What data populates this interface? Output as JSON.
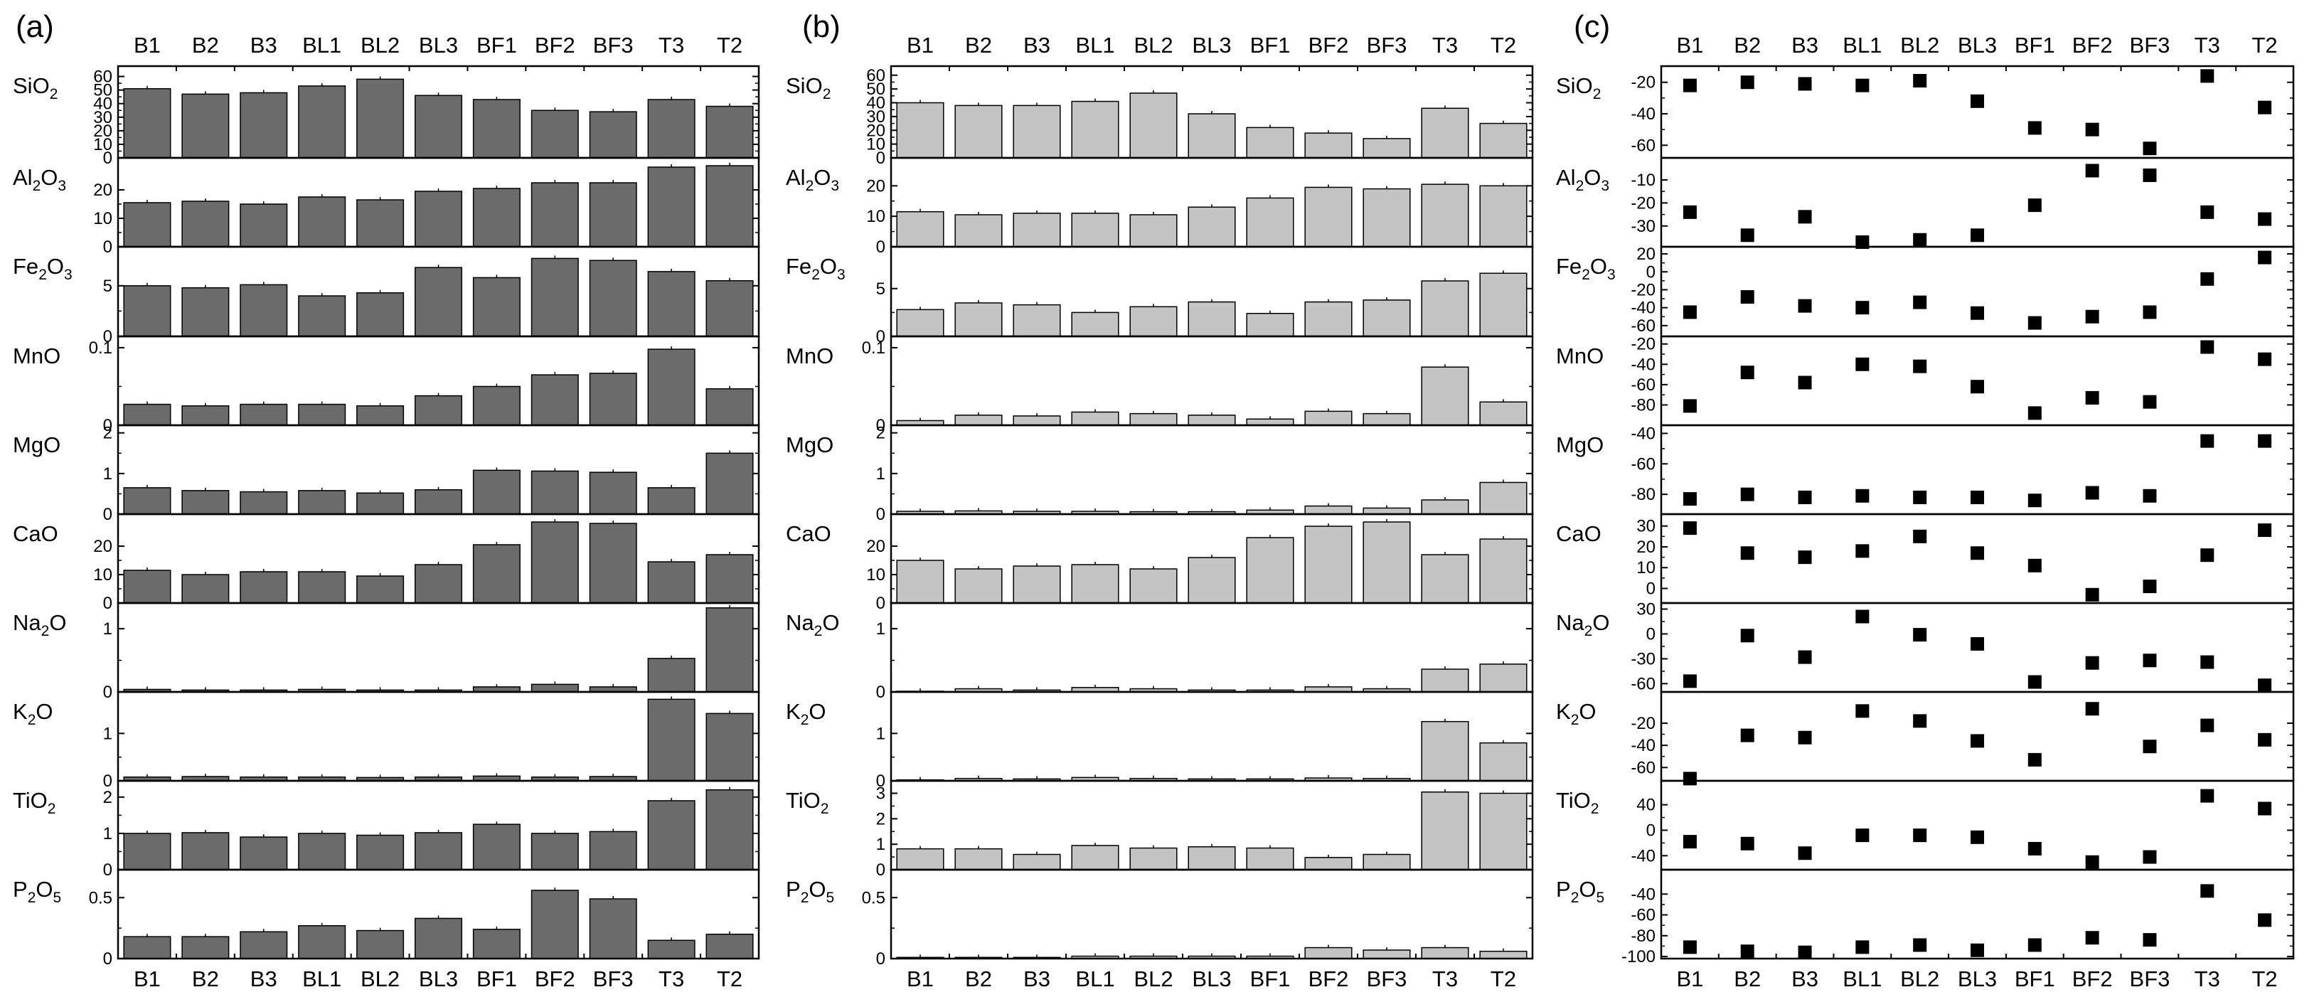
{
  "chart_data": [
    {
      "panel": "(a)",
      "type": "bar",
      "bar_color": "#6b6b6b",
      "categories": [
        "B1",
        "B2",
        "B3",
        "BL1",
        "BL2",
        "BL3",
        "BF1",
        "BF2",
        "BF3",
        "T3",
        "T2"
      ],
      "rows": [
        {
          "oxide": [
            "SiO",
            "2",
            ""
          ],
          "ylim": [
            0,
            65
          ],
          "ticks": [
            0,
            10,
            20,
            30,
            40,
            50,
            60
          ],
          "values": [
            51,
            47,
            48,
            53,
            58,
            46,
            43,
            35,
            34,
            43,
            38
          ]
        },
        {
          "oxide": [
            "Al",
            "2",
            "O",
            "3",
            ""
          ],
          "ylim": [
            0,
            30
          ],
          "ticks": [
            0,
            10,
            20
          ],
          "values": [
            15.5,
            16,
            15,
            17.5,
            16.5,
            19.5,
            20.5,
            22.5,
            22.5,
            28,
            28.5
          ]
        },
        {
          "oxide": [
            "Fe",
            "2",
            "O",
            "3",
            ""
          ],
          "ylim": [
            0,
            8.5
          ],
          "ticks": [
            0,
            5
          ],
          "values": [
            5,
            4.8,
            5.1,
            4,
            4.3,
            6.8,
            5.8,
            7.7,
            7.5,
            6.4,
            5.5
          ]
        },
        {
          "oxide": [
            "MnO"
          ],
          "ylim": [
            0,
            0.11
          ],
          "ticks": [
            0,
            0.1
          ],
          "values": [
            0.027,
            0.025,
            0.027,
            0.027,
            0.025,
            0.038,
            0.05,
            0.065,
            0.067,
            0.098,
            0.047
          ]
        },
        {
          "oxide": [
            "MgO"
          ],
          "ylim": [
            0,
            2.1
          ],
          "ticks": [
            0,
            1,
            2
          ],
          "values": [
            0.65,
            0.58,
            0.55,
            0.58,
            0.52,
            0.6,
            1.08,
            1.06,
            1.03,
            0.65,
            1.5
          ]
        },
        {
          "oxide": [
            "CaO"
          ],
          "ylim": [
            0,
            30
          ],
          "ticks": [
            0,
            10,
            20
          ],
          "values": [
            11.5,
            10,
            11,
            11,
            9.5,
            13.5,
            20.5,
            28.5,
            28,
            14.5,
            17
          ]
        },
        {
          "oxide": [
            "Na",
            "2",
            "O"
          ],
          "ylim": [
            0,
            1.35
          ],
          "ticks": [
            0,
            1
          ],
          "values": [
            0.04,
            0.03,
            0.03,
            0.04,
            0.03,
            0.03,
            0.08,
            0.12,
            0.08,
            0.53,
            1.33
          ]
        },
        {
          "oxide": [
            "K",
            "2",
            "O"
          ],
          "ylim": [
            0,
            1.8
          ],
          "ticks": [
            0,
            1
          ],
          "values": [
            0.08,
            0.09,
            0.08,
            0.08,
            0.07,
            0.08,
            0.1,
            0.08,
            0.09,
            1.72,
            1.42
          ]
        },
        {
          "oxide": [
            "TiO",
            "2",
            ""
          ],
          "ylim": [
            0,
            2.35
          ],
          "ticks": [
            0,
            1,
            2
          ],
          "values": [
            1,
            1.02,
            0.9,
            1,
            0.95,
            1.02,
            1.25,
            1,
            1.05,
            1.9,
            2.2
          ]
        },
        {
          "oxide": [
            "P",
            "2",
            "O",
            "5",
            ""
          ],
          "ylim": [
            0,
            0.7
          ],
          "ticks": [
            0,
            0.5
          ],
          "values": [
            0.18,
            0.18,
            0.22,
            0.27,
            0.23,
            0.33,
            0.24,
            0.56,
            0.49,
            0.15,
            0.2
          ]
        }
      ]
    },
    {
      "panel": "(b)",
      "type": "bar",
      "bar_color": "#c4c4c4",
      "categories": [
        "B1",
        "B2",
        "B3",
        "BL1",
        "BL2",
        "BL3",
        "BF1",
        "BF2",
        "BF3",
        "T3",
        "T2"
      ],
      "rows": [
        {
          "oxide": [
            "SiO",
            "2",
            ""
          ],
          "ylim": [
            0,
            64
          ],
          "ticks": [
            0,
            10,
            20,
            30,
            40,
            50,
            60
          ],
          "values": [
            40,
            38,
            38,
            41,
            47,
            32,
            22,
            18,
            14,
            36,
            25
          ]
        },
        {
          "oxide": [
            "Al",
            "2",
            "O",
            "3",
            ""
          ],
          "ylim": [
            0,
            28
          ],
          "ticks": [
            0,
            10,
            20
          ],
          "values": [
            11.5,
            10.5,
            11,
            11,
            10.5,
            13,
            16,
            19.5,
            19,
            20.5,
            20
          ]
        },
        {
          "oxide": [
            "Fe",
            "2",
            "O",
            "3",
            ""
          ],
          "ylim": [
            0,
            9
          ],
          "ticks": [
            0,
            5
          ],
          "values": [
            2.8,
            3.5,
            3.3,
            2.5,
            3.1,
            3.6,
            2.4,
            3.6,
            3.8,
            5.8,
            6.6
          ]
        },
        {
          "oxide": [
            "MnO"
          ],
          "ylim": [
            0,
            0.11
          ],
          "ticks": [
            0,
            0.1
          ],
          "values": [
            0.006,
            0.013,
            0.012,
            0.017,
            0.015,
            0.013,
            0.008,
            0.018,
            0.015,
            0.075,
            0.03
          ]
        },
        {
          "oxide": [
            "MgO"
          ],
          "ylim": [
            0,
            2.1
          ],
          "ticks": [
            0,
            1,
            2
          ],
          "values": [
            0.07,
            0.08,
            0.07,
            0.07,
            0.06,
            0.06,
            0.1,
            0.2,
            0.15,
            0.35,
            0.78
          ]
        },
        {
          "oxide": [
            "CaO"
          ],
          "ylim": [
            0,
            30
          ],
          "ticks": [
            0,
            10,
            20
          ],
          "values": [
            15,
            12,
            13,
            13.5,
            12,
            16,
            23,
            27,
            28.5,
            17,
            22.5
          ]
        },
        {
          "oxide": [
            "Na",
            "2",
            "O"
          ],
          "ylim": [
            0,
            1.35
          ],
          "ticks": [
            0,
            1
          ],
          "values": [
            0.01,
            0.05,
            0.03,
            0.07,
            0.05,
            0.03,
            0.03,
            0.08,
            0.05,
            0.36,
            0.44
          ]
        },
        {
          "oxide": [
            "K",
            "2",
            "O"
          ],
          "ylim": [
            0,
            1.8
          ],
          "ticks": [
            0,
            1
          ],
          "values": [
            0.02,
            0.05,
            0.04,
            0.07,
            0.05,
            0.04,
            0.04,
            0.06,
            0.05,
            1.25,
            0.8
          ]
        },
        {
          "oxide": [
            "TiO",
            "2",
            ""
          ],
          "ylim": [
            0,
            3.35
          ],
          "ticks": [
            0,
            1,
            2,
            3
          ],
          "values": [
            0.82,
            0.82,
            0.6,
            0.95,
            0.85,
            0.9,
            0.85,
            0.48,
            0.6,
            3.05,
            3
          ]
        },
        {
          "oxide": [
            "P",
            "2",
            "O",
            "5",
            ""
          ],
          "ylim": [
            0,
            0.7
          ],
          "ticks": [
            0,
            0.5
          ],
          "values": [
            0.01,
            0.01,
            0.01,
            0.02,
            0.02,
            0.02,
            0.02,
            0.09,
            0.07,
            0.09,
            0.06
          ]
        }
      ]
    },
    {
      "panel": "(c)",
      "type": "scatter",
      "marker_color": "#000000",
      "categories": [
        "B1",
        "B2",
        "B3",
        "BL1",
        "BL2",
        "BL3",
        "BF1",
        "BF2",
        "BF3",
        "T3",
        "T2"
      ],
      "rows": [
        {
          "oxide": [
            "SiO",
            "2",
            ""
          ],
          "ylim": [
            -68,
            -12
          ],
          "ticks": [
            -20,
            -40,
            -60
          ],
          "values": [
            -22,
            -20,
            -21,
            -22,
            -19,
            -32,
            -49,
            -50,
            -62,
            -16,
            -36
          ]
        },
        {
          "oxide": [
            "Al",
            "2",
            "O",
            "3",
            ""
          ],
          "ylim": [
            -39,
            -2
          ],
          "ticks": [
            -10,
            -20,
            -30
          ],
          "values": [
            -24,
            -34,
            -26,
            -37,
            -36,
            -34,
            -21,
            -6,
            -8,
            -24,
            -27
          ]
        },
        {
          "oxide": [
            "Fe",
            "2",
            "O",
            "3",
            ""
          ],
          "ylim": [
            -72,
            24
          ],
          "ticks": [
            20,
            0,
            -20,
            -40,
            -60
          ],
          "values": [
            -45,
            -28,
            -38,
            -40,
            -34,
            -46,
            -57,
            -50,
            -45,
            -8,
            16
          ]
        },
        {
          "oxide": [
            "MnO"
          ],
          "ylim": [
            -100,
            -16
          ],
          "ticks": [
            -20,
            -40,
            -60,
            -80
          ],
          "values": [
            -81,
            -48,
            -58,
            -40,
            -42,
            -62,
            -88,
            -73,
            -77,
            -23,
            -35
          ]
        },
        {
          "oxide": [
            "MgO"
          ],
          "ylim": [
            -93,
            -37
          ],
          "ticks": [
            -40,
            -60,
            -80
          ],
          "values": [
            -83,
            -80,
            -82,
            -81,
            -82,
            -82,
            -84,
            -79,
            -81,
            -45,
            -45
          ]
        },
        {
          "oxide": [
            "CaO"
          ],
          "ylim": [
            -7,
            34
          ],
          "ticks": [
            30,
            20,
            10,
            0
          ],
          "values": [
            29,
            17,
            15,
            18,
            25,
            17,
            11,
            -3,
            1,
            16,
            28
          ]
        },
        {
          "oxide": [
            "Na",
            "2",
            "O"
          ],
          "ylim": [
            -70,
            33
          ],
          "ticks": [
            30,
            0,
            -30,
            -60
          ],
          "values": [
            -57,
            -2,
            -28,
            21,
            -1,
            -12,
            -58,
            -35,
            -32,
            -34,
            -62
          ]
        },
        {
          "oxide": [
            "K",
            "2",
            "O"
          ],
          "ylim": [
            -72,
            5
          ],
          "ticks": [
            -20,
            -40,
            -60
          ],
          "values": [
            -70,
            -31,
            -33,
            -9,
            -18,
            -36,
            -53,
            -7,
            -41,
            -22,
            -35
          ]
        },
        {
          "oxide": [
            "TiO",
            "2",
            ""
          ],
          "ylim": [
            -62,
            72
          ],
          "ticks": [
            40,
            0,
            -40
          ],
          "values": [
            -18,
            -21,
            -36,
            -8,
            -8,
            -11,
            -29,
            -50,
            -42,
            54,
            34
          ]
        },
        {
          "oxide": [
            "P",
            "2",
            "O",
            "5",
            ""
          ],
          "ylim": [
            -102,
            -20
          ],
          "ticks": [
            -40,
            -60,
            -80,
            -100
          ],
          "values": [
            -91,
            -95,
            -96,
            -91,
            -89,
            -94,
            -89,
            -82,
            -84,
            -37,
            -65
          ]
        }
      ]
    }
  ]
}
